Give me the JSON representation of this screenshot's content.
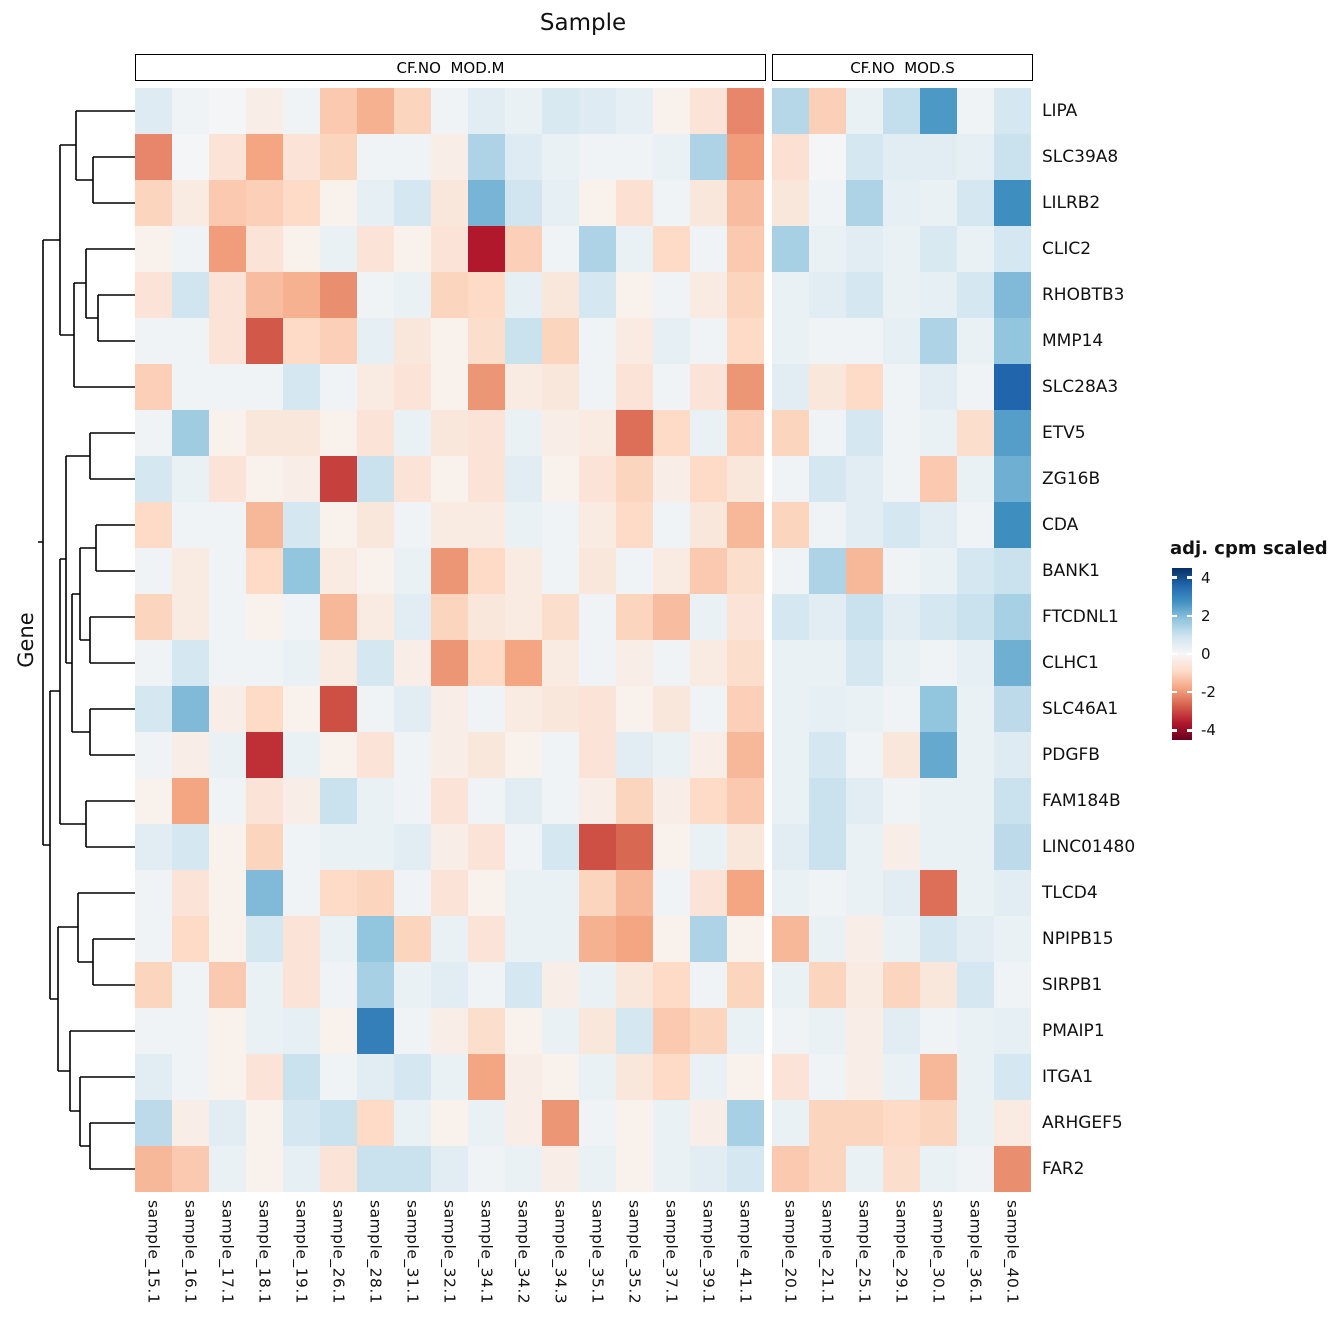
{
  "title": "Sample",
  "y_axis_title": "Gene",
  "column_groups": [
    {
      "label": "CF.NO  MOD.M",
      "n_samples": 17
    },
    {
      "label": "CF.NO  MOD.S",
      "n_samples": 7
    }
  ],
  "legend": {
    "title": "adj. cpm scaled",
    "ticks": [
      4,
      2,
      0,
      -2,
      -4
    ]
  },
  "chart_data": {
    "type": "heatmap",
    "colormap": "RdBu",
    "value_domain": [
      -4.5,
      4.5
    ],
    "split_index": 17,
    "palette": [
      "#67001f",
      "#b2182b",
      "#d6604d",
      "#f4a582",
      "#fddbc7",
      "#f7f7f7",
      "#d1e5f0",
      "#92c5de",
      "#4393c3",
      "#2166ac",
      "#053061"
    ],
    "genes": [
      "LIPA",
      "SLC39A8",
      "LILRB2",
      "CLIC2",
      "RHOBTB3",
      "MMP14",
      "SLC28A3",
      "ETV5",
      "ZG16B",
      "CDA",
      "BANK1",
      "FTCDNL1",
      "CLHC1",
      "SLC46A1",
      "PDGFB",
      "FAM184B",
      "LINC01480",
      "TLCD4",
      "NPIPB15",
      "SIRPB1",
      "PMAIP1",
      "ITGA1",
      "ARHGEF5",
      "FAR2"
    ],
    "sample_groups": [
      {
        "label": "CF.NO  MOD.M",
        "samples": [
          "sample_15.1",
          "sample_16.1",
          "sample_17.1",
          "sample_18.1",
          "sample_19.1",
          "sample_26.1",
          "sample_28.1",
          "sample_31.1",
          "sample_32.1",
          "sample_34.1",
          "sample_34.2",
          "sample_34.3",
          "sample_35.1",
          "sample_35.2",
          "sample_37.1",
          "sample_39.1",
          "sample_41.1"
        ]
      },
      {
        "label": "CF.NO  MOD.S",
        "samples": [
          "sample_20.1",
          "sample_21.1",
          "sample_25.1",
          "sample_29.1",
          "sample_30.1",
          "sample_36.1",
          "sample_40.1"
        ]
      }
    ],
    "samples": [
      "sample_15.1",
      "sample_16.1",
      "sample_17.1",
      "sample_18.1",
      "sample_19.1",
      "sample_26.1",
      "sample_28.1",
      "sample_31.1",
      "sample_32.1",
      "sample_34.1",
      "sample_34.2",
      "sample_34.3",
      "sample_35.1",
      "sample_35.2",
      "sample_37.1",
      "sample_39.1",
      "sample_41.1",
      "sample_20.1",
      "sample_21.1",
      "sample_25.1",
      "sample_29.1",
      "sample_30.1",
      "sample_36.1",
      "sample_40.1"
    ],
    "values": [
      [
        0.6,
        0.2,
        0.1,
        -0.3,
        0.2,
        -1.2,
        -1.6,
        -1.0,
        0.2,
        0.5,
        0.3,
        0.7,
        0.6,
        0.4,
        -0.2,
        -0.6,
        -2.2,
        1.3,
        -1.1,
        0.3,
        1.1,
        2.6,
        0.2,
        0.8
      ],
      [
        -2.2,
        0.1,
        -0.6,
        -1.8,
        -0.6,
        -1.0,
        0.2,
        0.2,
        -0.3,
        1.4,
        0.6,
        0.3,
        0.2,
        0.2,
        0.3,
        1.4,
        -1.9,
        -0.7,
        0.1,
        0.8,
        0.5,
        0.5,
        0.4,
        1.0
      ],
      [
        -1.0,
        -0.4,
        -1.2,
        -1.1,
        -0.9,
        -0.2,
        0.4,
        0.8,
        -0.5,
        2.1,
        0.9,
        0.4,
        -0.2,
        -0.7,
        0.2,
        -0.5,
        -1.4,
        -0.5,
        0.2,
        1.4,
        0.4,
        0.3,
        0.8,
        2.8
      ],
      [
        -0.2,
        0.2,
        -1.9,
        -0.6,
        -0.2,
        0.3,
        -0.6,
        -0.2,
        -0.6,
        -3.6,
        -1.1,
        0.2,
        1.4,
        0.3,
        -0.9,
        0.2,
        -1.2,
        1.5,
        0.3,
        0.5,
        0.3,
        0.7,
        0.3,
        0.8
      ],
      [
        -0.6,
        0.9,
        -0.6,
        -1.4,
        -1.6,
        -2.1,
        0.2,
        0.3,
        -1.0,
        -0.9,
        0.4,
        -0.5,
        0.8,
        -0.2,
        0.2,
        -0.4,
        -1.0,
        0.3,
        0.5,
        0.8,
        0.3,
        0.4,
        0.8,
        2.0
      ],
      [
        0.2,
        0.2,
        -0.6,
        -2.8,
        -0.9,
        -1.1,
        0.4,
        -0.5,
        -0.2,
        -0.8,
        1.0,
        -1.0,
        0.2,
        -0.4,
        0.4,
        0.2,
        -0.9,
        0.3,
        0.2,
        0.2,
        0.4,
        1.4,
        0.3,
        1.8
      ],
      [
        -1.1,
        0.2,
        0.2,
        0.2,
        0.8,
        0.2,
        -0.4,
        -0.6,
        -0.2,
        -2.0,
        -0.4,
        -0.5,
        0.2,
        -0.6,
        0.2,
        -0.6,
        -2.0,
        0.5,
        -0.5,
        -0.9,
        0.2,
        0.5,
        0.2,
        3.6
      ],
      [
        0.2,
        1.6,
        -0.2,
        -0.5,
        -0.5,
        -0.2,
        -0.6,
        0.3,
        -0.5,
        -0.6,
        0.3,
        -0.3,
        -0.4,
        -2.5,
        -0.9,
        0.3,
        -1.1,
        -1.0,
        0.2,
        0.8,
        0.2,
        0.3,
        -0.8,
        2.5
      ],
      [
        0.8,
        0.3,
        -0.6,
        -0.2,
        -0.3,
        -3.1,
        1.0,
        -0.6,
        -0.2,
        -0.6,
        0.5,
        -0.2,
        -0.6,
        -1.0,
        -0.3,
        -0.9,
        -0.5,
        0.2,
        0.8,
        0.5,
        0.2,
        -1.2,
        0.3,
        2.2
      ],
      [
        -0.9,
        0.2,
        0.2,
        -1.5,
        0.8,
        -0.2,
        -0.5,
        0.2,
        -0.4,
        -0.4,
        0.3,
        0.2,
        -0.4,
        -0.9,
        0.2,
        -0.5,
        -1.5,
        -1.0,
        0.2,
        0.5,
        0.8,
        0.5,
        0.2,
        2.8
      ],
      [
        0.2,
        -0.4,
        0.2,
        -0.9,
        1.8,
        -0.4,
        -0.2,
        0.3,
        -2.0,
        -0.9,
        -0.4,
        0.2,
        -0.5,
        0.2,
        -0.4,
        -1.2,
        -0.8,
        0.2,
        1.4,
        -1.5,
        0.2,
        0.3,
        0.8,
        1.0
      ],
      [
        -1.0,
        -0.4,
        0.2,
        -0.2,
        0.2,
        -1.5,
        -0.4,
        0.5,
        -1.0,
        -0.5,
        -0.4,
        -0.8,
        0.2,
        -1.0,
        -1.4,
        0.3,
        -0.6,
        0.8,
        0.5,
        1.0,
        0.5,
        0.8,
        1.0,
        1.5
      ],
      [
        0.2,
        0.8,
        0.2,
        0.2,
        0.3,
        -0.4,
        0.8,
        -0.3,
        -2.0,
        -0.9,
        -1.8,
        -0.4,
        0.2,
        -0.3,
        0.2,
        -0.4,
        -0.8,
        0.3,
        0.3,
        0.8,
        0.3,
        0.2,
        0.4,
        2.2
      ],
      [
        0.8,
        2.0,
        -0.3,
        -0.9,
        -0.2,
        -2.9,
        0.2,
        0.5,
        -0.3,
        0.2,
        -0.4,
        -0.5,
        -0.6,
        -0.2,
        -0.5,
        0.2,
        -1.1,
        0.3,
        0.4,
        0.3,
        0.2,
        1.8,
        0.3,
        1.2
      ],
      [
        0.2,
        -0.3,
        0.3,
        -3.3,
        0.3,
        -0.2,
        -0.6,
        0.2,
        -0.3,
        -0.5,
        -0.2,
        0.2,
        -0.6,
        0.5,
        0.3,
        -0.3,
        -1.5,
        0.3,
        0.8,
        0.2,
        -0.5,
        2.3,
        0.3,
        0.6
      ],
      [
        -0.2,
        -1.8,
        0.2,
        -0.6,
        -0.3,
        1.0,
        0.3,
        0.2,
        -0.6,
        0.2,
        0.5,
        0.2,
        -0.3,
        -1.0,
        -0.3,
        -0.9,
        -1.2,
        0.3,
        1.0,
        0.5,
        0.2,
        0.3,
        0.3,
        1.0
      ],
      [
        0.5,
        0.8,
        -0.2,
        -1.0,
        0.2,
        0.3,
        0.3,
        0.5,
        -0.3,
        -0.6,
        0.2,
        0.8,
        -2.9,
        -2.6,
        -0.2,
        0.3,
        -0.5,
        0.5,
        1.0,
        0.3,
        -0.3,
        0.3,
        0.3,
        1.2
      ],
      [
        0.2,
        -0.6,
        -0.2,
        2.0,
        0.2,
        -0.9,
        -1.0,
        0.2,
        -0.6,
        -0.2,
        0.3,
        0.3,
        -1.0,
        -1.5,
        0.2,
        -0.6,
        -1.8,
        0.3,
        0.2,
        0.3,
        0.5,
        -2.5,
        0.3,
        0.5
      ],
      [
        0.2,
        -0.9,
        -0.2,
        0.8,
        -0.6,
        0.3,
        1.8,
        -1.0,
        0.3,
        -0.6,
        0.3,
        0.3,
        -1.6,
        -1.8,
        -0.2,
        1.4,
        -0.2,
        -1.5,
        0.3,
        -0.3,
        0.3,
        0.8,
        0.5,
        0.3
      ],
      [
        -1.0,
        0.2,
        -1.2,
        0.3,
        -0.6,
        0.2,
        1.5,
        0.3,
        0.5,
        0.2,
        0.8,
        -0.3,
        0.3,
        -0.5,
        -0.9,
        0.2,
        -1.0,
        0.3,
        -1.0,
        -0.4,
        -1.0,
        -0.5,
        0.8,
        0.2
      ],
      [
        0.2,
        0.2,
        -0.2,
        0.3,
        0.4,
        -0.2,
        3.1,
        0.2,
        -0.3,
        -0.8,
        -0.2,
        0.3,
        -0.5,
        0.8,
        -1.2,
        -1.0,
        0.3,
        0.2,
        0.3,
        -0.3,
        0.5,
        0.2,
        0.3,
        0.4
      ],
      [
        0.5,
        0.2,
        -0.2,
        -0.6,
        1.0,
        0.2,
        0.5,
        0.8,
        0.3,
        -1.8,
        -0.3,
        -0.2,
        0.3,
        -0.5,
        -0.9,
        0.3,
        -0.2,
        -0.6,
        0.2,
        -0.3,
        0.3,
        -1.5,
        0.3,
        0.8
      ],
      [
        1.2,
        -0.3,
        0.5,
        -0.2,
        0.8,
        1.0,
        -0.9,
        0.3,
        -0.2,
        0.3,
        -0.3,
        -2.0,
        0.2,
        -0.2,
        0.3,
        -0.3,
        1.5,
        0.3,
        -1.0,
        -1.0,
        -0.9,
        -1.0,
        0.3,
        -0.4
      ],
      [
        -1.5,
        -1.2,
        0.3,
        -0.2,
        0.4,
        -0.6,
        1.0,
        1.0,
        0.5,
        0.2,
        0.3,
        -0.3,
        0.3,
        -0.2,
        0.3,
        0.5,
        0.8,
        -1.2,
        -1.0,
        0.3,
        -0.8,
        0.3,
        0.2,
        -2.1
      ]
    ]
  }
}
